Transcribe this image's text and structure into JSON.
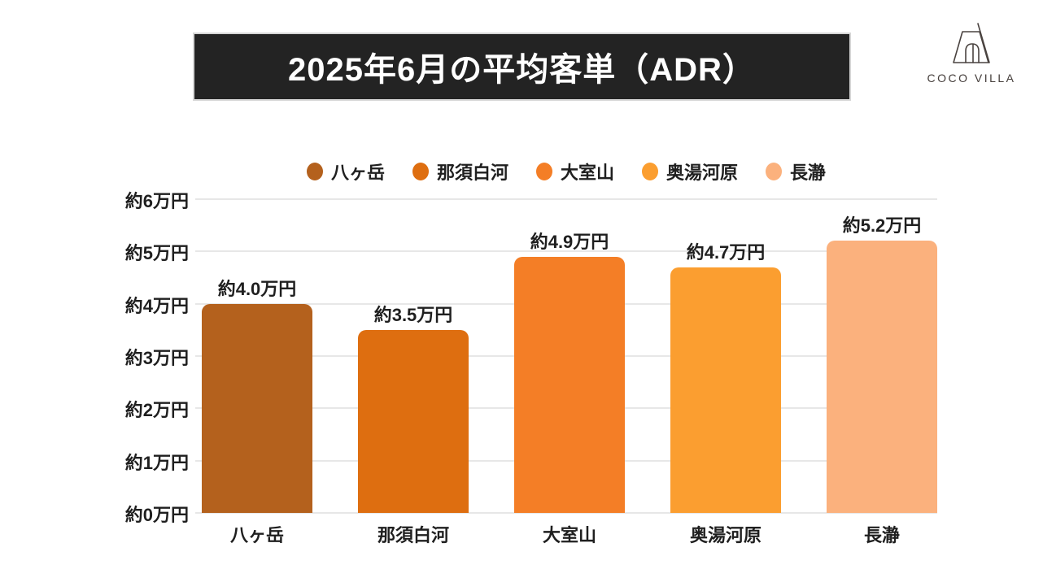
{
  "header": {
    "title": "2025年6月の平均客単（ADR）",
    "title_bg": "#232323",
    "title_color": "#ffffff"
  },
  "logo": {
    "text": "COCO VILLA",
    "icon": "tent-villa-icon",
    "color": "#443d3a"
  },
  "chart_data": {
    "type": "bar",
    "title": "2025年6月の平均客単（ADR）",
    "categories": [
      "八ヶ岳",
      "那須白河",
      "大室山",
      "奥湯河原",
      "長瀞"
    ],
    "values": [
      4.0,
      3.5,
      4.9,
      4.7,
      5.2
    ],
    "value_labels": [
      "約4.0万円",
      "約3.5万円",
      "約4.9万円",
      "約4.7万円",
      "約5.2万円"
    ],
    "bar_colors": [
      "#B4611D",
      "#DE6E10",
      "#F47E26",
      "#FB9E30",
      "#FBB17D"
    ],
    "legend": [
      "八ヶ岳",
      "那須白河",
      "大室山",
      "奥湯河原",
      "長瀞"
    ],
    "legend_position": "top-center",
    "y_ticks": [
      "約0万円",
      "約1万円",
      "約2万円",
      "約3万円",
      "約4万円",
      "約5万円",
      "約6万円"
    ],
    "ylim": [
      0,
      6
    ],
    "unit": "万円",
    "xlabel": "",
    "ylabel": "",
    "grid": true,
    "gridline_color": "#e7e7e7"
  }
}
